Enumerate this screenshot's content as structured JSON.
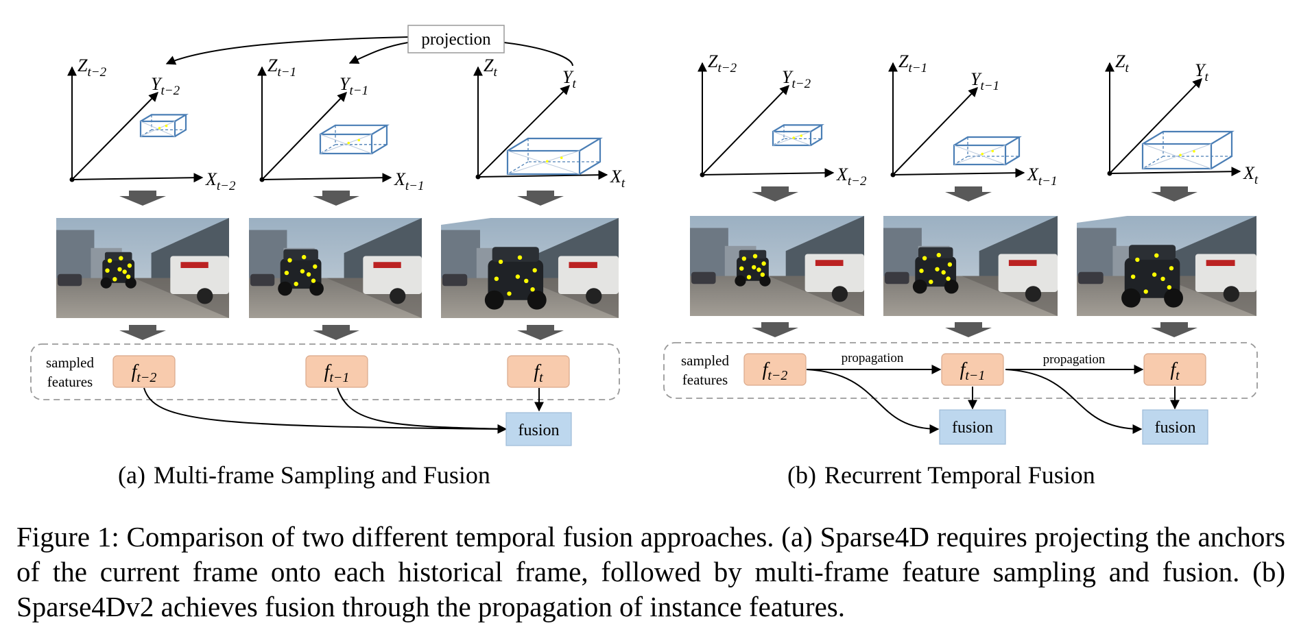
{
  "projection_label": "projection",
  "axis_letters": {
    "x": "X",
    "y": "Y",
    "z": "Z"
  },
  "frame_subscripts": [
    "t−2",
    "t−1",
    "t"
  ],
  "feature_letter": "f",
  "feature_subscripts": [
    "t−2",
    "t−1",
    "t"
  ],
  "sampled_features_label": [
    "sampled",
    "features"
  ],
  "fusion_label": "fusion",
  "propagation_label": "propagation",
  "subfigure_a": {
    "tag": "(a)",
    "title": "Multi-frame Sampling and Fusion"
  },
  "subfigure_b": {
    "tag": "(b)",
    "title": "Recurrent Temporal Fusion"
  },
  "caption": {
    "label": "Figure 1:",
    "text": "Comparison of two different temporal fusion approaches. (a) Sparse4D requires projecting the anchors of the current frame onto each historical frame, followed by multi-frame feature sampling and fusion. (b) Sparse4Dv2 achieves fusion through the propagation of instance features."
  },
  "colors": {
    "feature_box_fill": "#f8cbad",
    "fusion_box_fill": "#bdd7ee",
    "bbox_stroke": "#4a7eb5",
    "keypoint": "#ffff00",
    "arrow_block": "#595959"
  }
}
